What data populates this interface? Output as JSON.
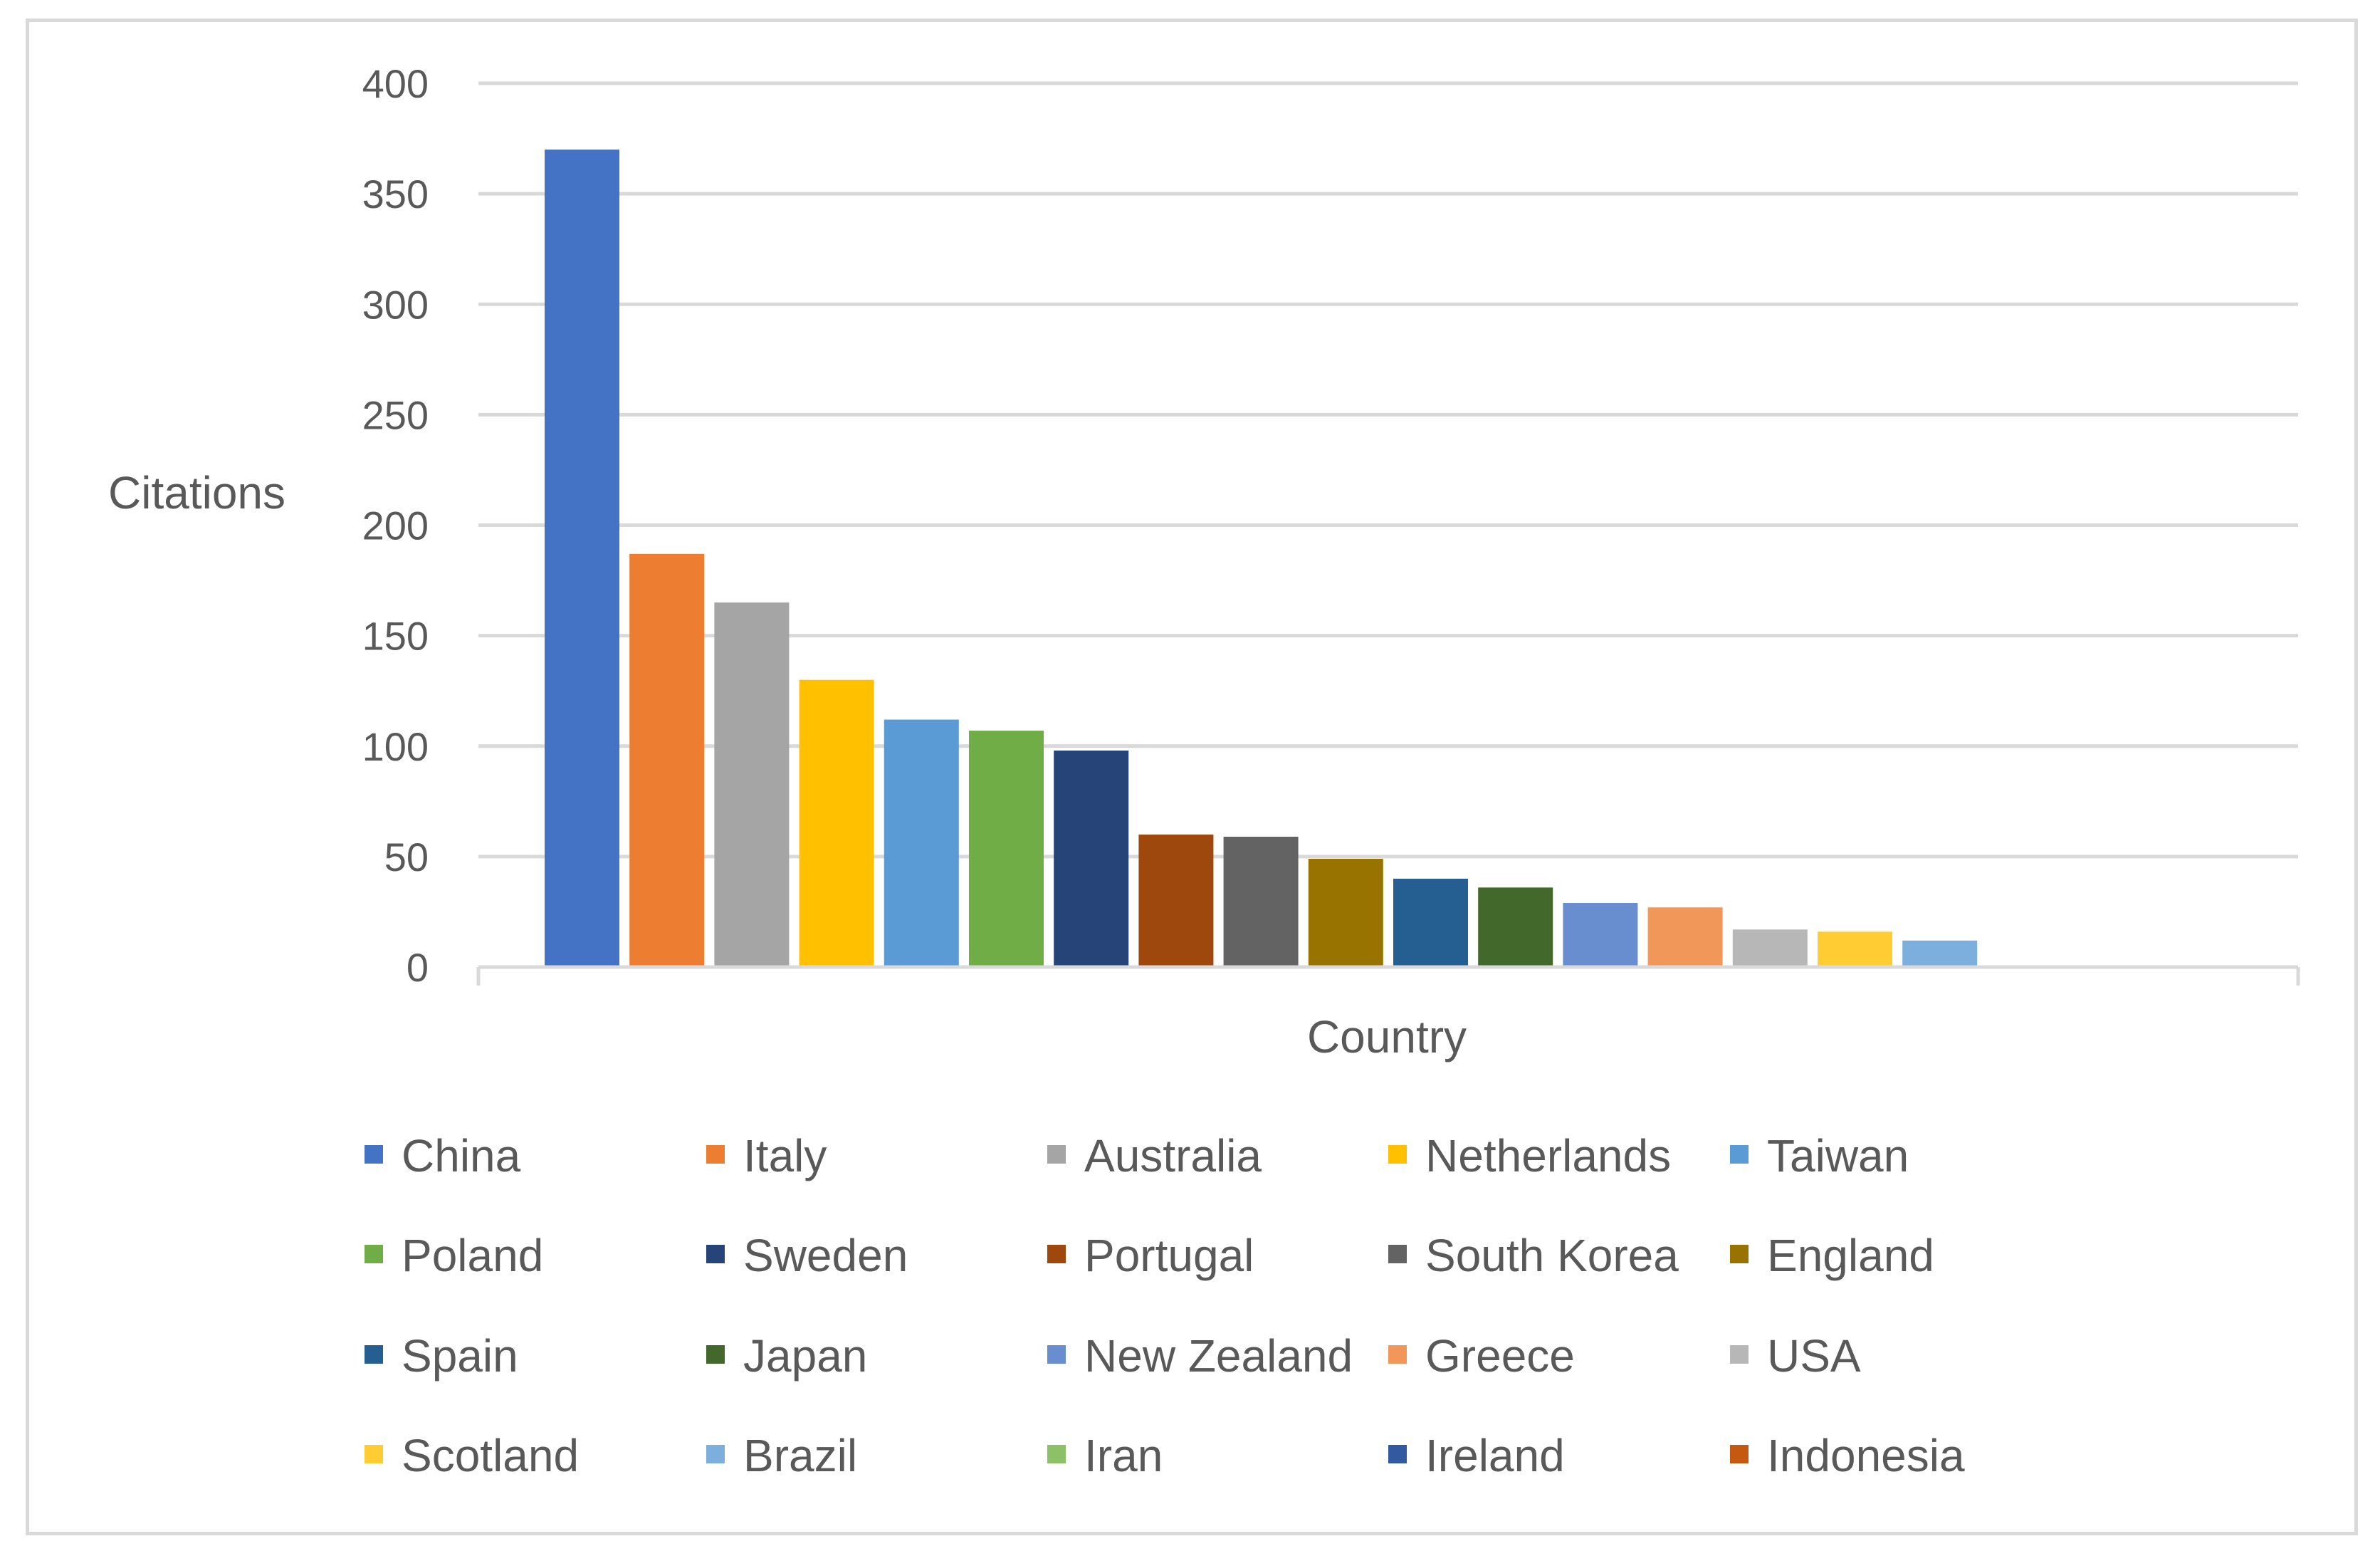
{
  "chart_data": {
    "type": "bar",
    "xlabel": "Country",
    "ylabel": "Citations",
    "ylim": [
      0,
      400
    ],
    "yticks": [
      0,
      50,
      100,
      150,
      200,
      250,
      300,
      350,
      400
    ],
    "grid": true,
    "legend_position": "bottom",
    "series": [
      {
        "name": "China",
        "value": 370,
        "color": "#4472C4"
      },
      {
        "name": "Italy",
        "value": 187,
        "color": "#ED7D31"
      },
      {
        "name": "Australia",
        "value": 165,
        "color": "#A5A5A5"
      },
      {
        "name": "Netherlands",
        "value": 130,
        "color": "#FFC000"
      },
      {
        "name": "Taiwan",
        "value": 112,
        "color": "#5B9BD5"
      },
      {
        "name": "Poland",
        "value": 107,
        "color": "#70AD47"
      },
      {
        "name": "Sweden",
        "value": 98,
        "color": "#264478"
      },
      {
        "name": "Portugal",
        "value": 60,
        "color": "#9E480E"
      },
      {
        "name": "South Korea",
        "value": 59,
        "color": "#636363"
      },
      {
        "name": "England",
        "value": 49,
        "color": "#997300"
      },
      {
        "name": "Spain",
        "value": 40,
        "color": "#255E91"
      },
      {
        "name": "Japan",
        "value": 36,
        "color": "#43682B"
      },
      {
        "name": "New Zealand",
        "value": 29,
        "color": "#698ED0"
      },
      {
        "name": "Greece",
        "value": 27,
        "color": "#F1975A"
      },
      {
        "name": "USA",
        "value": 17,
        "color": "#B7B7B7"
      },
      {
        "name": "Scotland",
        "value": 16,
        "color": "#FFCD33"
      },
      {
        "name": "Brazil",
        "value": 12,
        "color": "#7CAFDD"
      },
      {
        "name": "Iran",
        "value": 0,
        "color": "#8CC168"
      },
      {
        "name": "Ireland",
        "value": 0,
        "color": "#335AA1"
      },
      {
        "name": "Indonesia",
        "value": 0,
        "color": "#C65911"
      }
    ]
  }
}
